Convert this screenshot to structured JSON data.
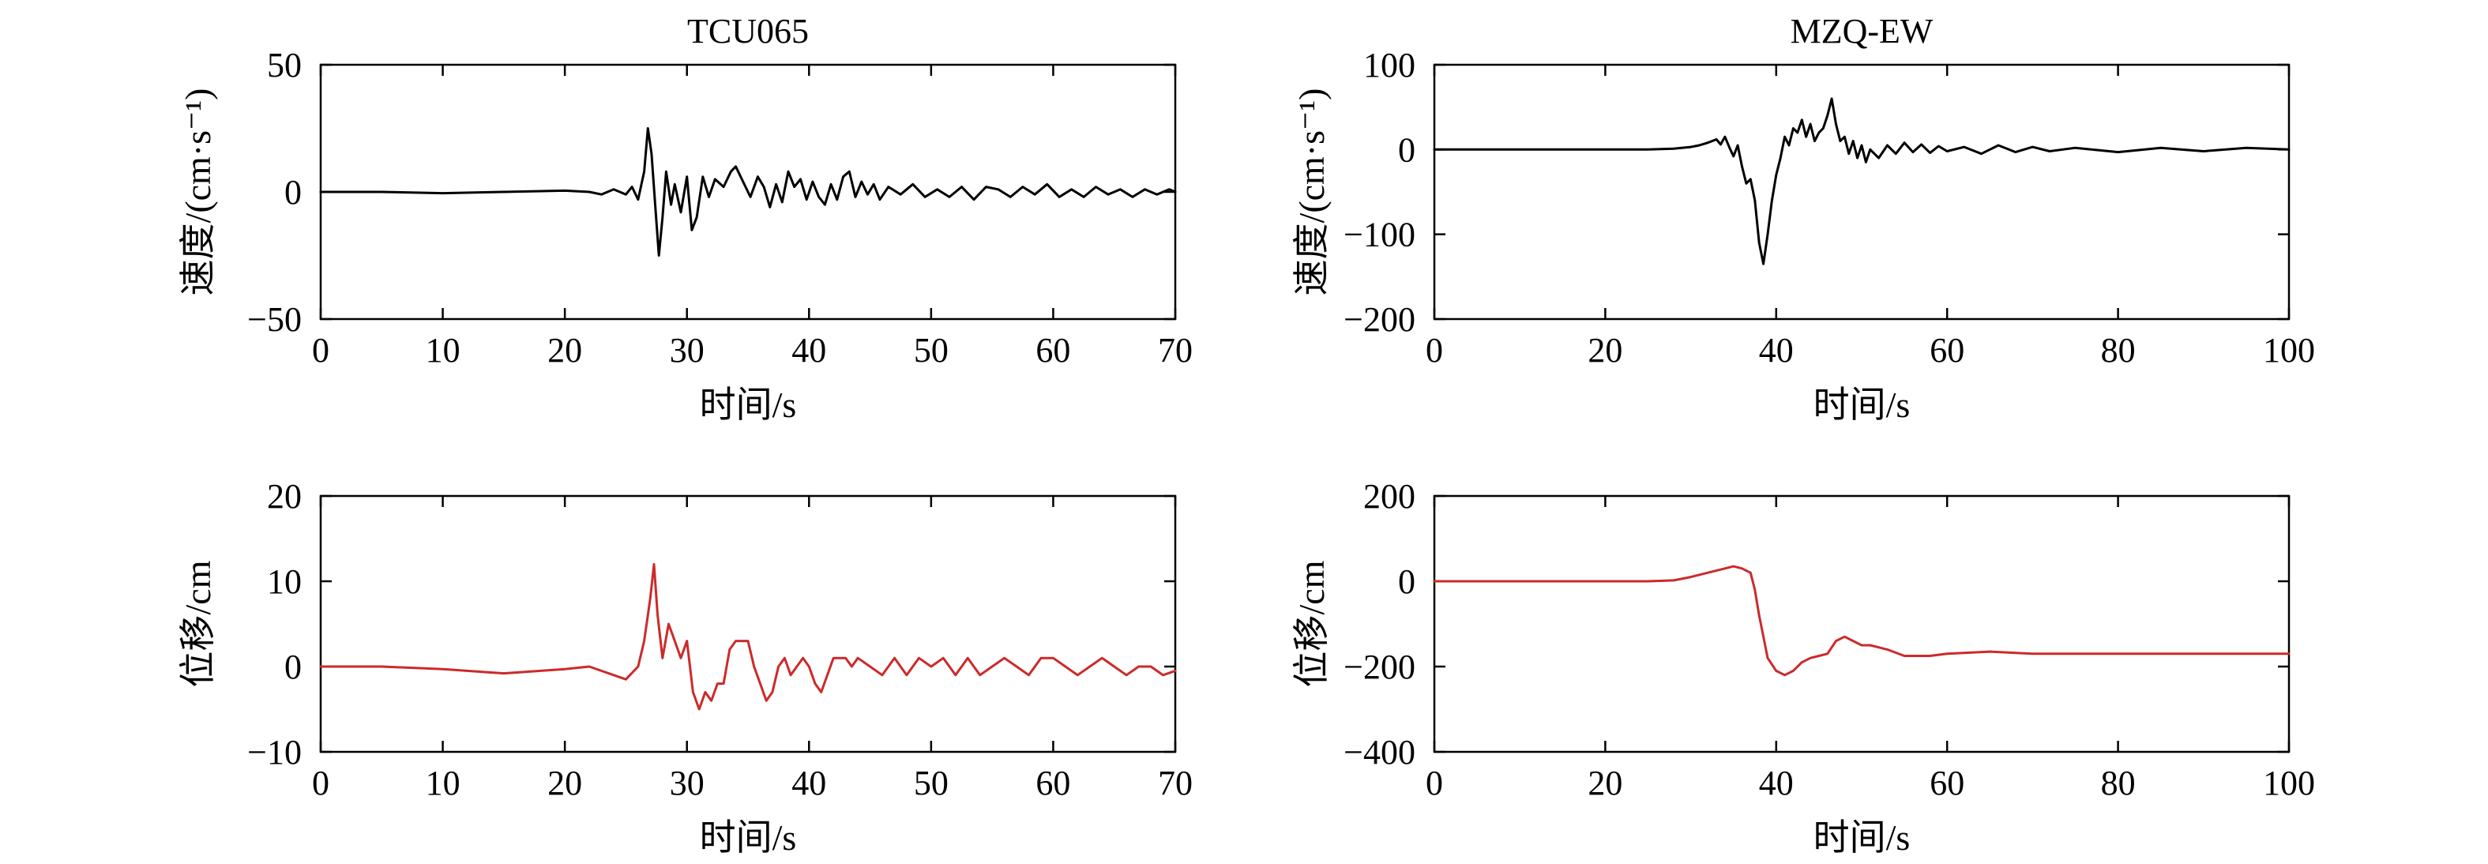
{
  "chart_data": [
    {
      "type": "line",
      "title": "TCU065",
      "xlabel": "时间/s",
      "ylabel": "速度/(cm·s⁻¹)",
      "xlim": [
        0,
        70
      ],
      "ylim": [
        -50,
        50
      ],
      "xticks": [
        0,
        10,
        20,
        30,
        40,
        50,
        60,
        70
      ],
      "yticks": [
        -50,
        0,
        50
      ],
      "grid": false,
      "color": "#000000",
      "series": [
        {
          "x": [
            0,
            5,
            10,
            15,
            20,
            22,
            23,
            24,
            25,
            25.5,
            26,
            26.5,
            26.8,
            27.1,
            27.4,
            27.7,
            28,
            28.3,
            28.7,
            29,
            29.5,
            30,
            30.4,
            30.8,
            31.3,
            31.8,
            32.3,
            33,
            33.6,
            34,
            34.6,
            35.2,
            35.8,
            36.3,
            36.8,
            37.3,
            37.8,
            38.3,
            38.8,
            39.3,
            39.8,
            40.3,
            40.8,
            41.3,
            41.8,
            42.3,
            42.8,
            43.3,
            43.8,
            44.3,
            44.8,
            45.3,
            45.8,
            46.5,
            47.5,
            48.5,
            49.5,
            50.5,
            51.5,
            52.5,
            53.5,
            54.5,
            55.5,
            56.5,
            57.5,
            58.5,
            59.5,
            60.5,
            61.5,
            62.5,
            63.5,
            64.5,
            65.5,
            66.5,
            67.5,
            68.5,
            69.5,
            70
          ],
          "y": [
            0,
            0,
            -0.5,
            0,
            0.5,
            0,
            -1,
            1,
            -1,
            2,
            -3,
            8,
            25,
            15,
            -5,
            -25,
            -10,
            8,
            -5,
            3,
            -8,
            6,
            -15,
            -10,
            6,
            -2,
            5,
            2,
            8,
            10,
            4,
            -2,
            6,
            2,
            -6,
            3,
            -4,
            8,
            2,
            5,
            -3,
            4,
            -2,
            -5,
            3,
            -3,
            6,
            8,
            -2,
            4,
            -1,
            3,
            -3,
            2,
            -1,
            3,
            -2,
            1,
            -2,
            2,
            -3,
            2,
            1,
            -2,
            2,
            -1,
            3,
            -2,
            1,
            -2,
            2,
            -1,
            1,
            -2,
            1,
            -1,
            1,
            0
          ]
        }
      ]
    },
    {
      "type": "line",
      "title": "MZQ-EW",
      "xlabel": "时间/s",
      "ylabel": "速度/(cm·s⁻¹)",
      "xlim": [
        0,
        100
      ],
      "ylim": [
        -200,
        100
      ],
      "xticks": [
        0,
        20,
        40,
        60,
        80,
        100
      ],
      "yticks": [
        -200,
        -100,
        0,
        100
      ],
      "grid": false,
      "color": "#000000",
      "series": [
        {
          "x": [
            0,
            10,
            20,
            25,
            28,
            30,
            31,
            32,
            33,
            33.5,
            34,
            34.5,
            35,
            35.5,
            36,
            36.5,
            37,
            37.5,
            38,
            38.5,
            39,
            39.5,
            40,
            40.5,
            41,
            41.5,
            42,
            42.5,
            43,
            43.5,
            44,
            44.5,
            45,
            45.5,
            46,
            46.5,
            47,
            47.5,
            48,
            48.5,
            49,
            49.5,
            50,
            50.5,
            51,
            52,
            53,
            54,
            55,
            56,
            57,
            58,
            59,
            60,
            62,
            64,
            66,
            68,
            70,
            72,
            75,
            80,
            85,
            90,
            95,
            100
          ],
          "y": [
            0,
            0,
            0,
            0,
            1,
            3,
            5,
            8,
            12,
            6,
            15,
            3,
            -8,
            5,
            -20,
            -40,
            -35,
            -60,
            -110,
            -135,
            -100,
            -60,
            -30,
            -10,
            15,
            5,
            25,
            20,
            35,
            15,
            30,
            10,
            20,
            25,
            40,
            60,
            30,
            10,
            15,
            -5,
            10,
            -10,
            5,
            -15,
            0,
            -10,
            5,
            -5,
            8,
            -3,
            6,
            -4,
            4,
            -2,
            3,
            -5,
            5,
            -3,
            3,
            -2,
            2,
            -3,
            2,
            -2,
            2,
            0
          ]
        }
      ]
    },
    {
      "type": "line",
      "xlabel": "时间/s",
      "ylabel": "位移/cm",
      "xlim": [
        0,
        70
      ],
      "ylim": [
        -10,
        20
      ],
      "xticks": [
        0,
        10,
        20,
        30,
        40,
        50,
        60,
        70
      ],
      "yticks": [
        -10,
        0,
        10,
        20
      ],
      "grid": false,
      "color": "#cc2a2a",
      "series": [
        {
          "x": [
            0,
            5,
            10,
            15,
            20,
            22,
            24,
            25,
            26,
            26.5,
            27,
            27.3,
            27.6,
            28,
            28.5,
            29,
            29.5,
            30,
            30.5,
            31,
            31.5,
            32,
            32.5,
            33,
            33.5,
            34,
            34.5,
            35,
            35.5,
            36,
            36.5,
            37,
            37.5,
            38,
            38.5,
            39,
            39.5,
            40,
            40.5,
            41,
            41.5,
            42,
            42.5,
            43,
            43.5,
            44,
            45,
            46,
            47,
            48,
            49,
            50,
            51,
            52,
            53,
            54,
            55,
            56,
            57,
            58,
            59,
            60,
            61,
            62,
            63,
            64,
            65,
            66,
            67,
            68,
            69,
            70
          ],
          "y": [
            0,
            0,
            -0.3,
            -0.8,
            -0.3,
            0,
            -1,
            -1.5,
            0,
            3,
            8,
            12,
            6,
            1,
            5,
            3,
            1,
            3,
            -3,
            -5,
            -3,
            -4,
            -2,
            -2,
            2,
            3,
            3,
            3,
            0,
            -2,
            -4,
            -3,
            0,
            1,
            -1,
            0,
            1,
            0,
            -2,
            -3,
            -1,
            1,
            1,
            1,
            0,
            1,
            0,
            -1,
            1,
            -1,
            1,
            0,
            1,
            -1,
            1,
            -1,
            0,
            1,
            0,
            -1,
            1,
            1,
            0,
            -1,
            0,
            1,
            0,
            -1,
            0,
            0,
            -1,
            -0.5
          ]
        }
      ]
    },
    {
      "type": "line",
      "xlabel": "时间/s",
      "ylabel": "位移/cm",
      "xlim": [
        0,
        100
      ],
      "ylim": [
        -400,
        200
      ],
      "xticks": [
        0,
        20,
        40,
        60,
        80,
        100
      ],
      "yticks": [
        -400,
        -200,
        0,
        200
      ],
      "grid": false,
      "color": "#cc2a2a",
      "series": [
        {
          "x": [
            0,
            10,
            20,
            25,
            28,
            30,
            32,
            34,
            35,
            36,
            37,
            37.5,
            38,
            38.5,
            39,
            40,
            41,
            42,
            43,
            44,
            45,
            46,
            47,
            48,
            49,
            50,
            51,
            52,
            53,
            55,
            58,
            60,
            65,
            70,
            80,
            90,
            100
          ],
          "y": [
            0,
            0,
            0,
            0,
            2,
            10,
            20,
            30,
            35,
            30,
            20,
            -20,
            -80,
            -130,
            -180,
            -210,
            -220,
            -210,
            -190,
            -180,
            -175,
            -170,
            -140,
            -130,
            -140,
            -150,
            -150,
            -155,
            -160,
            -175,
            -175,
            -170,
            -165,
            -170,
            -170,
            -170,
            -170
          ]
        }
      ]
    }
  ]
}
